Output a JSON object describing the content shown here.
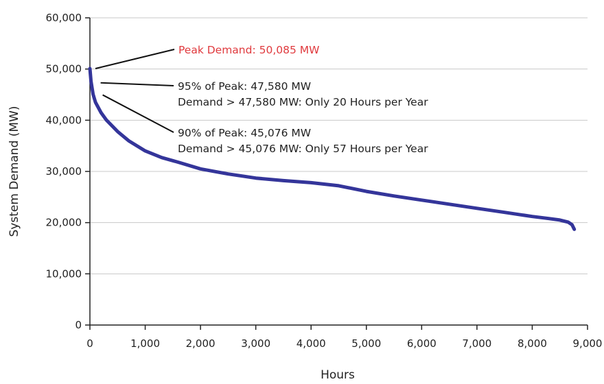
{
  "chart_data": {
    "type": "line",
    "title": "",
    "xlabel": "Hours",
    "ylabel": "System Demand (MW)",
    "xlim": [
      0,
      9000
    ],
    "ylim": [
      0,
      60000
    ],
    "x_ticks": [
      0,
      1000,
      2000,
      3000,
      4000,
      5000,
      6000,
      7000,
      8000,
      9000
    ],
    "x_tick_labels": [
      "0",
      "1,000",
      "2,000",
      "3,000",
      "4,000",
      "5,000",
      "6,000",
      "7,000",
      "8,000",
      "9,000"
    ],
    "y_ticks": [
      0,
      10000,
      20000,
      30000,
      40000,
      50000,
      60000
    ],
    "y_tick_labels": [
      "0",
      "10,000",
      "20,000",
      "30,000",
      "40,000",
      "50,000",
      "60,000"
    ],
    "grid": "horizontal",
    "series": [
      {
        "color": "#34359a",
        "points": [
          [
            0,
            50085
          ],
          [
            20,
            47580
          ],
          [
            57,
            45076
          ],
          [
            100,
            43500
          ],
          [
            200,
            41500
          ],
          [
            300,
            40000
          ],
          [
            500,
            37800
          ],
          [
            700,
            36000
          ],
          [
            1000,
            34000
          ],
          [
            1300,
            32700
          ],
          [
            1600,
            31800
          ],
          [
            2000,
            30500
          ],
          [
            2500,
            29500
          ],
          [
            3000,
            28700
          ],
          [
            3500,
            28200
          ],
          [
            4000,
            27800
          ],
          [
            4500,
            27200
          ],
          [
            5000,
            26100
          ],
          [
            5500,
            25200
          ],
          [
            6000,
            24400
          ],
          [
            6500,
            23600
          ],
          [
            7000,
            22800
          ],
          [
            7500,
            22000
          ],
          [
            8000,
            21200
          ],
          [
            8300,
            20800
          ],
          [
            8500,
            20500
          ],
          [
            8650,
            20100
          ],
          [
            8720,
            19600
          ],
          [
            8760,
            18700
          ]
        ]
      }
    ],
    "annotations": [
      {
        "lines": [
          "Peak Demand: 50,085 MW"
        ],
        "color": "#e03a3e",
        "point": [
          0,
          50085
        ]
      },
      {
        "lines": [
          "95% of Peak: 47,580 MW",
          "Demand > 47,580 MW: Only 20 Hours per Year"
        ],
        "color": "#222222",
        "point": [
          20,
          47580
        ]
      },
      {
        "lines": [
          "90% of Peak: 45,076 MW",
          "Demand > 45,076 MW: Only 57 Hours per Year"
        ],
        "color": "#222222",
        "point": [
          57,
          45076
        ]
      }
    ]
  }
}
